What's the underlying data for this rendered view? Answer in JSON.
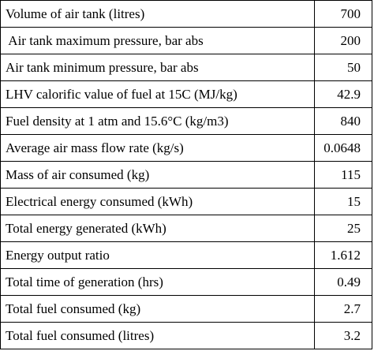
{
  "table": {
    "rows": [
      {
        "label": "Volume of air tank (litres)",
        "value": "700"
      },
      {
        "label": " Air tank maximum pressure, bar abs",
        "value": "200"
      },
      {
        "label": "Air tank minimum pressure, bar abs",
        "value": "50"
      },
      {
        "label": "LHV calorific value of fuel at 15C (MJ/kg)",
        "value": "42.9"
      },
      {
        "label": "Fuel density at 1 atm and 15.6°C (kg/m3)",
        "value": "840"
      },
      {
        "label": "Average air mass flow rate (kg/s)",
        "value": "0.0648"
      },
      {
        "label": "Mass of air consumed (kg)",
        "value": "115"
      },
      {
        "label": "Electrical energy consumed (kWh)",
        "value": "15"
      },
      {
        "label": "Total energy generated (kWh)",
        "value": "25"
      },
      {
        "label": "Energy output ratio",
        "value": "1.612"
      },
      {
        "label": "Total time of generation (hrs)",
        "value": "0.49"
      },
      {
        "label": "Total fuel consumed (kg)",
        "value": "2.7"
      },
      {
        "label": "Total fuel consumed (litres)",
        "value": "3.2"
      }
    ]
  }
}
